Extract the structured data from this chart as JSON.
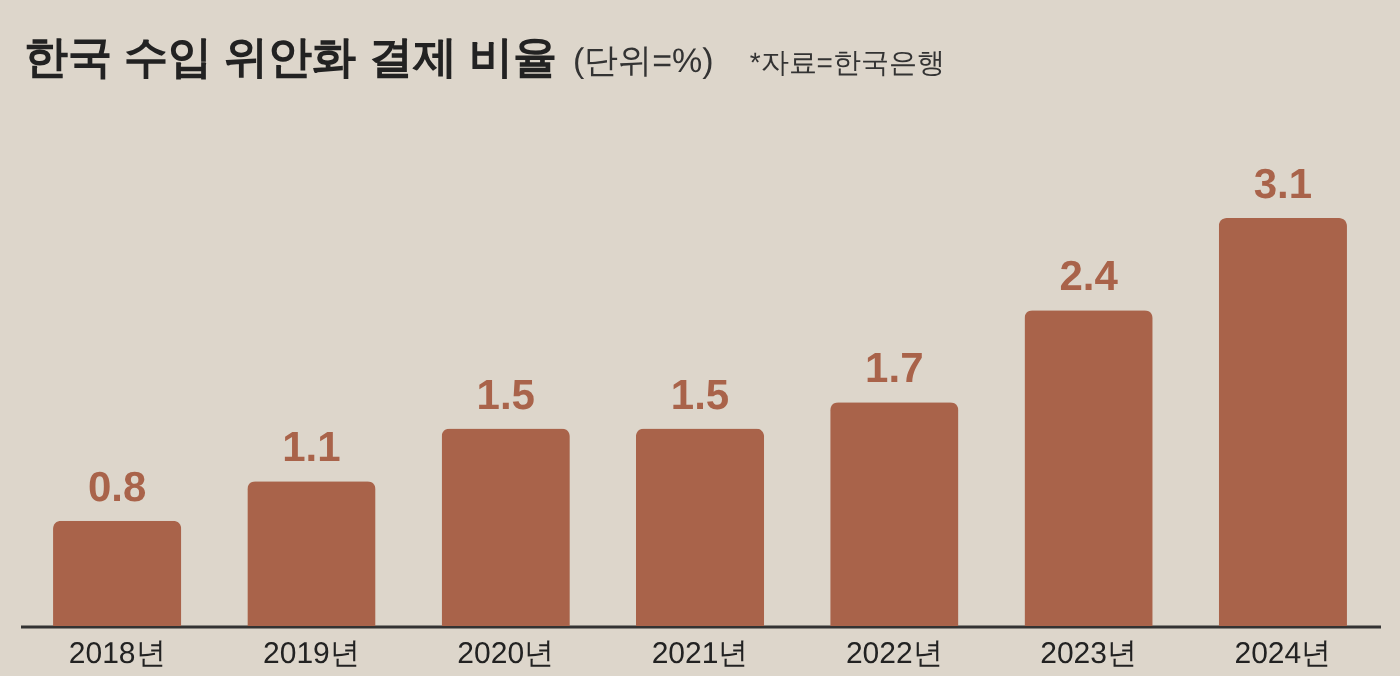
{
  "chart_data": {
    "type": "bar",
    "title": "한국 수입 위안화 결제 비율",
    "subtitle": "(단위=%)",
    "annotations": [
      "*자료=한국은행"
    ],
    "categories": [
      "2018년",
      "2019년",
      "2020년",
      "2021년",
      "2022년",
      "2023년",
      "2024년"
    ],
    "values": [
      0.8,
      1.1,
      1.5,
      1.5,
      1.7,
      2.4,
      3.1
    ],
    "color": "#a9634a",
    "data_labels": true
  }
}
